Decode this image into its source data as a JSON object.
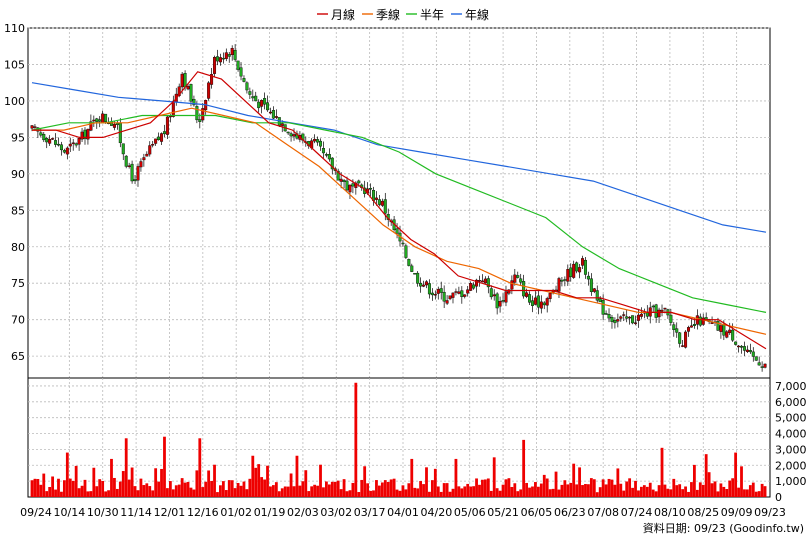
{
  "legend": [
    {
      "label": "月線",
      "color": "#cc0000"
    },
    {
      "label": "季線",
      "color": "#ee6600"
    },
    {
      "label": "半年",
      "color": "#22bb22"
    },
    {
      "label": "年線",
      "color": "#2266dd"
    }
  ],
  "source_text": "資料日期: 09/23  (Goodinfo.tw)",
  "colors": {
    "up": "#cc0000",
    "down": "#22aa22",
    "volume": "#ee0000",
    "grid": "#bbbbbb"
  },
  "chart_data": [
    {
      "type": "candlestick",
      "ylim": [
        62,
        110
      ],
      "yticks": [
        65,
        70,
        75,
        80,
        85,
        90,
        95,
        100,
        105,
        110
      ],
      "x_tick_labels": [
        "09/24",
        "10/14",
        "10/30",
        "11/14",
        "12/01",
        "12/16",
        "01/02",
        "01/19",
        "02/03",
        "03/02",
        "03/17",
        "04/01",
        "04/20",
        "05/06",
        "05/21",
        "06/05",
        "06/23",
        "07/08",
        "07/24",
        "08/10",
        "08/25",
        "09/09",
        "09/23"
      ],
      "close_points": [
        96,
        95,
        93,
        95,
        98,
        97,
        89,
        93,
        96,
        104,
        97,
        106,
        107,
        101,
        99,
        97,
        95,
        94,
        91,
        88,
        88,
        86,
        81,
        76,
        74,
        73,
        74,
        76,
        72,
        76,
        72,
        73,
        76,
        78,
        72,
        70,
        70,
        71,
        71,
        67,
        70,
        69,
        68,
        65,
        64
      ],
      "ma_month": [
        96,
        96,
        95,
        95,
        96,
        97,
        100,
        104,
        103,
        100,
        97,
        96,
        93,
        90,
        88,
        84,
        81,
        79,
        76,
        75,
        74,
        74,
        74,
        73,
        73,
        72,
        71,
        71,
        70,
        70,
        68,
        66
      ],
      "ma_quarter": [
        96,
        96,
        97,
        97,
        98,
        99,
        98,
        97,
        94,
        91,
        87,
        83,
        80,
        78,
        77,
        75,
        74,
        73,
        72,
        71,
        71,
        70,
        69,
        68
      ],
      "ma_half": [
        96,
        97,
        97,
        98,
        98,
        98,
        97,
        97,
        96,
        95,
        93,
        90,
        88,
        86,
        84,
        80,
        77,
        75,
        73,
        72,
        71
      ],
      "ma_year": [
        102.5,
        101.5,
        100.5,
        100,
        99.5,
        98,
        97,
        96,
        94,
        93,
        92,
        91,
        90,
        89,
        87,
        85,
        83,
        82
      ]
    },
    {
      "type": "bar",
      "series_name": "volume",
      "ylim": [
        0,
        7500
      ],
      "yticks": [
        0,
        1000,
        2000,
        3000,
        4000,
        5000,
        6000,
        7000
      ],
      "ytick_labels": [
        "0",
        "1,000",
        "2,000",
        "3,000",
        "4,000",
        "5,000",
        "6,000",
        "7,000"
      ],
      "spike_values": [
        7200,
        3800,
        3700,
        2800,
        3700,
        2500,
        3600,
        3100,
        2700,
        2600,
        2600,
        2400,
        2400,
        2100,
        1800,
        2800,
        2400
      ]
    }
  ]
}
